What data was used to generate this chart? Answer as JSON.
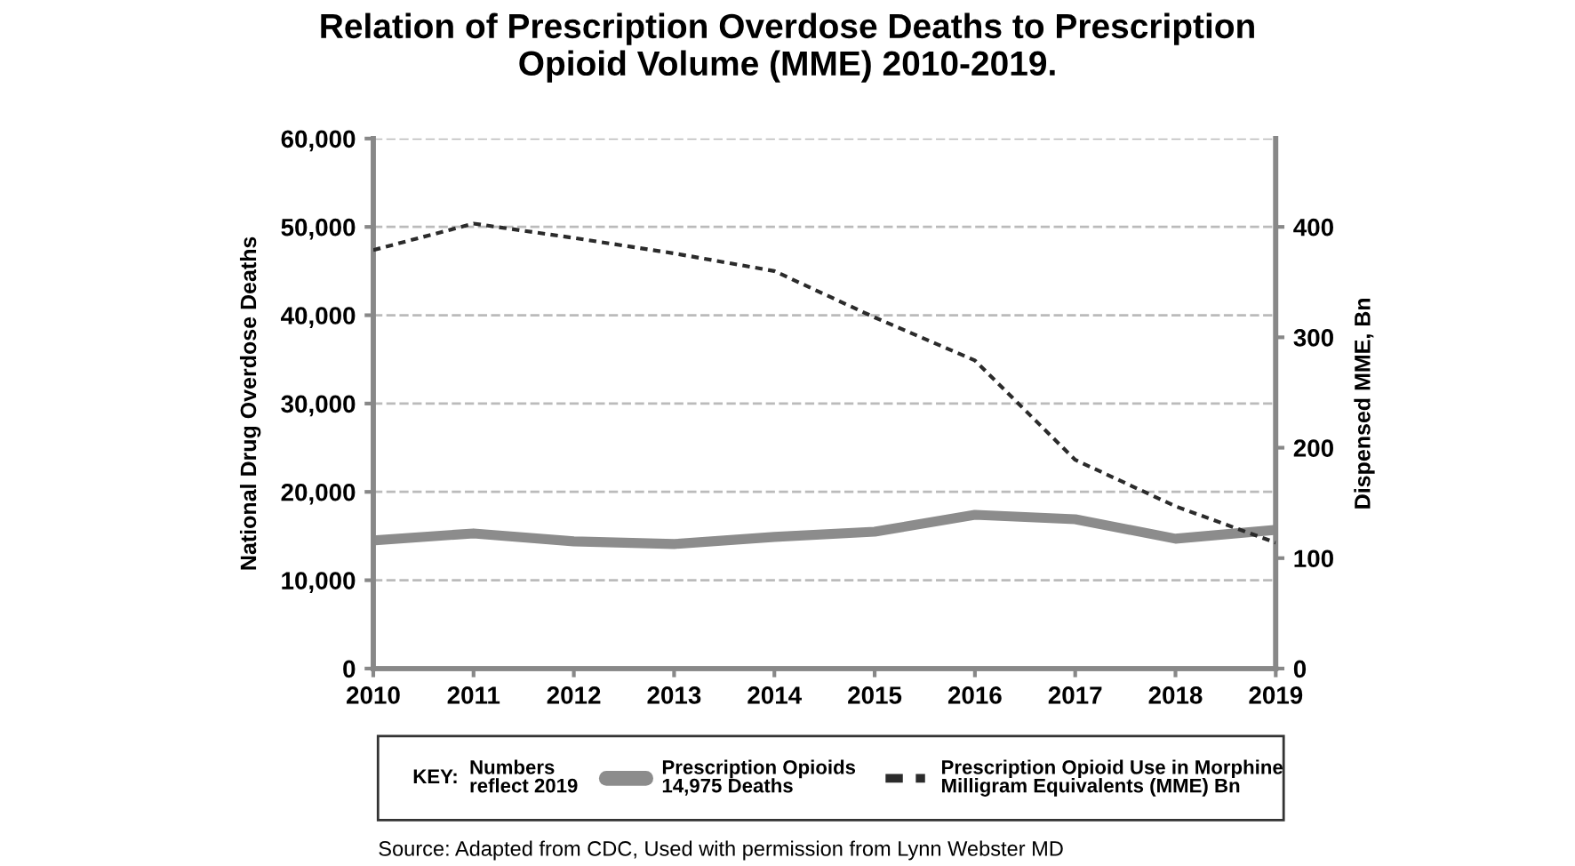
{
  "chart_data": {
    "type": "line",
    "title": "Relation of Prescription Overdose Deaths to Prescription\nOpioid Volume (MME) 2010-2019.",
    "ylabel": "National Drug Overdose Deaths",
    "y2label": "Dispensed MME, Bn",
    "legend_title": "KEY:",
    "x": [
      2010,
      2011,
      2012,
      2013,
      2014,
      2015,
      2016,
      2017,
      2018,
      2019
    ],
    "series": [
      {
        "name": "Prescription Opioids\n14,975 Deaths",
        "color": "#8c8c8c",
        "line_style": "solid",
        "values": [
          14500,
          15300,
          14400,
          14100,
          14900,
          15500,
          17400,
          16900,
          14700,
          15700
        ]
      },
      {
        "name": "Prescription Opioid Use in Morphine\nMilligram Equivalents (MME) Bn",
        "color": "#2b2b2b",
        "line_style": "dotted",
        "axis": "y2",
        "values": [
          379,
          403,
          390,
          376,
          360,
          318,
          279,
          189,
          147,
          114
        ]
      }
    ],
    "xlim": [
      2010,
      2019
    ],
    "xticks": [
      2010,
      2011,
      2012,
      2013,
      2014,
      2015,
      2016,
      2017,
      2018,
      2019
    ],
    "ylim": [
      0,
      60000
    ],
    "yticks": [
      {
        "value": 0,
        "label": "0"
      },
      {
        "value": 10000,
        "label": "10,000"
      },
      {
        "value": 20000,
        "label": "20,000"
      },
      {
        "value": 30000,
        "label": "30,000"
      },
      {
        "value": 40000,
        "label": "40,000"
      },
      {
        "value": 50000,
        "label": "50,000"
      },
      {
        "value": 60000,
        "label": "60,000"
      }
    ],
    "y2lim": [
      0,
      480
    ],
    "y2ticks": [
      0,
      100,
      200,
      300,
      400
    ],
    "grid": "y",
    "legend": "bottom",
    "marker": "none",
    "annotations": [
      "Numbers\nreflect 2019",
      "Source: Adapted from CDC, Used with permission from Lynn Webster MD"
    ]
  }
}
